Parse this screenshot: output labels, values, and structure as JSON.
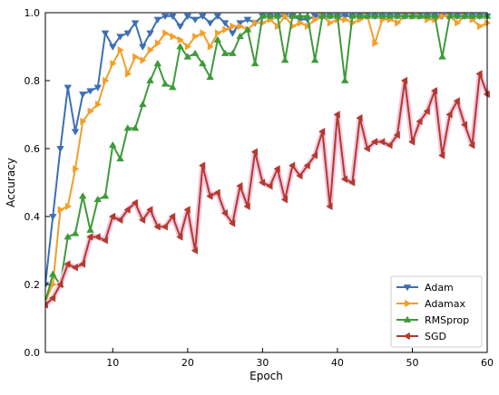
{
  "chart_data": {
    "type": "line",
    "xlabel": "Epoch",
    "ylabel": "Accuracy",
    "xlim": [
      1,
      60
    ],
    "ylim": [
      0.0,
      1.0
    ],
    "xticks": [
      10,
      20,
      30,
      40,
      50,
      60
    ],
    "yticks": [
      0.0,
      0.2,
      0.4,
      0.6,
      0.8,
      1.0
    ],
    "ytick_labels": [
      "0.0",
      "0.2",
      "0.4",
      "0.6",
      "0.8",
      "1.0"
    ],
    "grid": false,
    "legend_position": "lower-right",
    "x": [
      1,
      2,
      3,
      4,
      5,
      6,
      7,
      8,
      9,
      10,
      11,
      12,
      13,
      14,
      15,
      16,
      17,
      18,
      19,
      20,
      21,
      22,
      23,
      24,
      25,
      26,
      27,
      28,
      29,
      30,
      31,
      32,
      33,
      34,
      35,
      36,
      37,
      38,
      39,
      40,
      41,
      42,
      43,
      44,
      45,
      46,
      47,
      48,
      49,
      50,
      51,
      52,
      53,
      54,
      55,
      56,
      57,
      58,
      59,
      60
    ],
    "series": [
      {
        "name": "Adam",
        "color": "#3c6fb4",
        "marker": "triangle-down",
        "values": [
          0.2,
          0.4,
          0.6,
          0.78,
          0.65,
          0.76,
          0.77,
          0.78,
          0.94,
          0.9,
          0.93,
          0.94,
          0.97,
          0.9,
          0.94,
          0.98,
          0.99,
          0.99,
          0.96,
          0.99,
          0.98,
          0.99,
          0.97,
          0.99,
          0.97,
          0.94,
          0.97,
          0.98,
          0.97,
          0.99,
          0.99,
          0.99,
          0.99,
          0.99,
          0.98,
          0.98,
          0.99,
          0.99,
          0.99,
          0.99,
          0.99,
          0.99,
          0.99,
          0.99,
          0.99,
          0.99,
          0.99,
          0.99,
          0.99,
          0.99,
          0.99,
          0.99,
          0.99,
          0.99,
          0.99,
          0.99,
          0.99,
          0.99,
          0.99,
          0.99
        ]
      },
      {
        "name": "Adamax",
        "color": "#f29f2a",
        "marker": "triangle-right",
        "values": [
          0.15,
          0.2,
          0.42,
          0.43,
          0.54,
          0.68,
          0.71,
          0.73,
          0.8,
          0.85,
          0.89,
          0.82,
          0.87,
          0.86,
          0.89,
          0.91,
          0.94,
          0.93,
          0.92,
          0.9,
          0.93,
          0.94,
          0.9,
          0.94,
          0.95,
          0.96,
          0.96,
          0.95,
          0.97,
          0.97,
          0.98,
          0.96,
          0.99,
          0.96,
          0.97,
          0.96,
          0.98,
          0.99,
          0.97,
          0.98,
          0.98,
          0.97,
          0.98,
          0.99,
          0.91,
          0.98,
          0.98,
          0.97,
          0.99,
          0.99,
          0.99,
          0.98,
          0.98,
          0.99,
          0.99,
          0.97,
          0.99,
          0.98,
          0.96,
          0.97
        ]
      },
      {
        "name": "RMSprop",
        "color": "#3e9a3a",
        "marker": "triangle-up",
        "values": [
          0.15,
          0.23,
          0.2,
          0.34,
          0.35,
          0.46,
          0.36,
          0.45,
          0.46,
          0.61,
          0.57,
          0.66,
          0.66,
          0.73,
          0.8,
          0.85,
          0.79,
          0.78,
          0.9,
          0.87,
          0.88,
          0.85,
          0.81,
          0.92,
          0.88,
          0.88,
          0.93,
          0.95,
          0.85,
          0.99,
          0.99,
          0.99,
          0.86,
          0.99,
          0.99,
          0.99,
          0.86,
          0.99,
          0.99,
          0.99,
          0.8,
          0.99,
          0.99,
          0.99,
          0.99,
          0.99,
          0.99,
          0.99,
          0.99,
          0.99,
          0.99,
          0.99,
          0.99,
          0.87,
          0.99,
          0.99,
          0.99,
          0.99,
          0.99,
          0.99
        ]
      },
      {
        "name": "SGD",
        "color": "#b23a2e",
        "marker": "triangle-left",
        "values": [
          0.14,
          0.16,
          0.2,
          0.26,
          0.25,
          0.26,
          0.34,
          0.34,
          0.33,
          0.4,
          0.39,
          0.42,
          0.44,
          0.39,
          0.42,
          0.37,
          0.37,
          0.4,
          0.34,
          0.42,
          0.3,
          0.55,
          0.46,
          0.47,
          0.41,
          0.38,
          0.49,
          0.43,
          0.59,
          0.5,
          0.49,
          0.54,
          0.45,
          0.55,
          0.52,
          0.55,
          0.58,
          0.65,
          0.43,
          0.7,
          0.51,
          0.5,
          0.69,
          0.6,
          0.62,
          0.62,
          0.61,
          0.64,
          0.8,
          0.62,
          0.68,
          0.71,
          0.77,
          0.58,
          0.7,
          0.74,
          0.67,
          0.61,
          0.82,
          0.76
        ]
      }
    ]
  }
}
